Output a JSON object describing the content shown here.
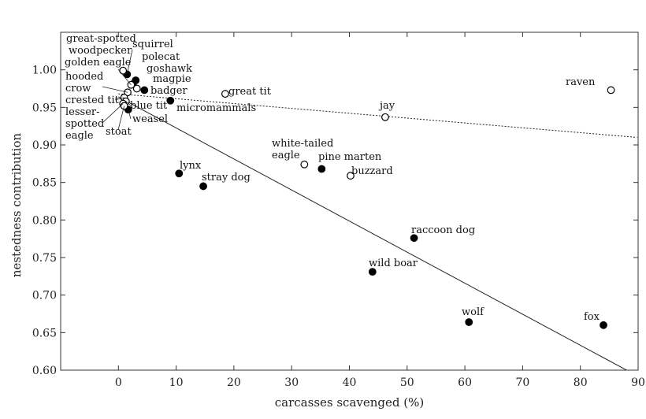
{
  "chart_data": {
    "type": "scatter",
    "xlabel": "carcasses scavenged (%)",
    "ylabel": "nestedness contribution",
    "xlim": [
      -10,
      90
    ],
    "ylim": [
      0.6,
      1.05
    ],
    "x_ticks": [
      0,
      10,
      20,
      30,
      40,
      50,
      60,
      70,
      80,
      90
    ],
    "y_ticks": [
      0.6,
      0.65,
      0.7,
      0.75,
      0.8,
      0.85,
      0.9,
      0.95,
      1.0
    ],
    "grid": false,
    "series": [
      {
        "marker": "filled",
        "points": [
          {
            "label": "squirrel",
            "x": 1.5,
            "y": 0.994
          },
          {
            "label": "polecat",
            "x": 3.0,
            "y": 0.986
          },
          {
            "label": "goshawk",
            "x": 2.5,
            "y": 0.981
          },
          {
            "label": "badger",
            "x": 4.5,
            "y": 0.973
          },
          {
            "label": "weasel",
            "x": 1.7,
            "y": 0.947
          },
          {
            "label": "micromammals",
            "x": 9.0,
            "y": 0.959
          },
          {
            "label": "lynx",
            "x": 10.5,
            "y": 0.862
          },
          {
            "label": "stray dog",
            "x": 14.7,
            "y": 0.845
          },
          {
            "label": "pine marten",
            "x": 35.2,
            "y": 0.868
          },
          {
            "label": "raccoon dog",
            "x": 51.2,
            "y": 0.776
          },
          {
            "label": "wild boar",
            "x": 44.0,
            "y": 0.731
          },
          {
            "label": "wolf",
            "x": 60.7,
            "y": 0.664
          },
          {
            "label": "fox",
            "x": 84.0,
            "y": 0.66
          }
        ]
      },
      {
        "marker": "open",
        "points": [
          {
            "label": "great-spotted woodpecker",
            "x": 0.8,
            "y": 0.999
          },
          {
            "label": "golden eagle",
            "x": 2.2,
            "y": 0.98
          },
          {
            "label": "magpie",
            "x": 3.2,
            "y": 0.975
          },
          {
            "label": "hooded crow",
            "x": 1.6,
            "y": 0.97
          },
          {
            "label": "crested tit",
            "x": 1.0,
            "y": 0.963
          },
          {
            "label": "blue tit",
            "x": 1.3,
            "y": 0.958
          },
          {
            "label": "lesser-spotted eagle",
            "x": 0.8,
            "y": 0.955
          },
          {
            "label": "stoat",
            "x": 1.0,
            "y": 0.952
          },
          {
            "label": "great tit",
            "x": 18.5,
            "y": 0.968
          },
          {
            "label": "jay",
            "x": 46.2,
            "y": 0.937
          },
          {
            "label": "raven",
            "x": 85.3,
            "y": 0.973
          },
          {
            "label": "white-tailed eagle",
            "x": 32.2,
            "y": 0.874
          },
          {
            "label": "buzzard",
            "x": 40.2,
            "y": 0.859
          }
        ]
      }
    ],
    "fit_lines": [
      {
        "style": "solid",
        "x": [
          0,
          88.5
        ],
        "y": [
          0.964,
          0.598
        ]
      },
      {
        "style": "dotted",
        "x": [
          0,
          89.8
        ],
        "y": [
          0.968,
          0.91
        ]
      }
    ]
  }
}
